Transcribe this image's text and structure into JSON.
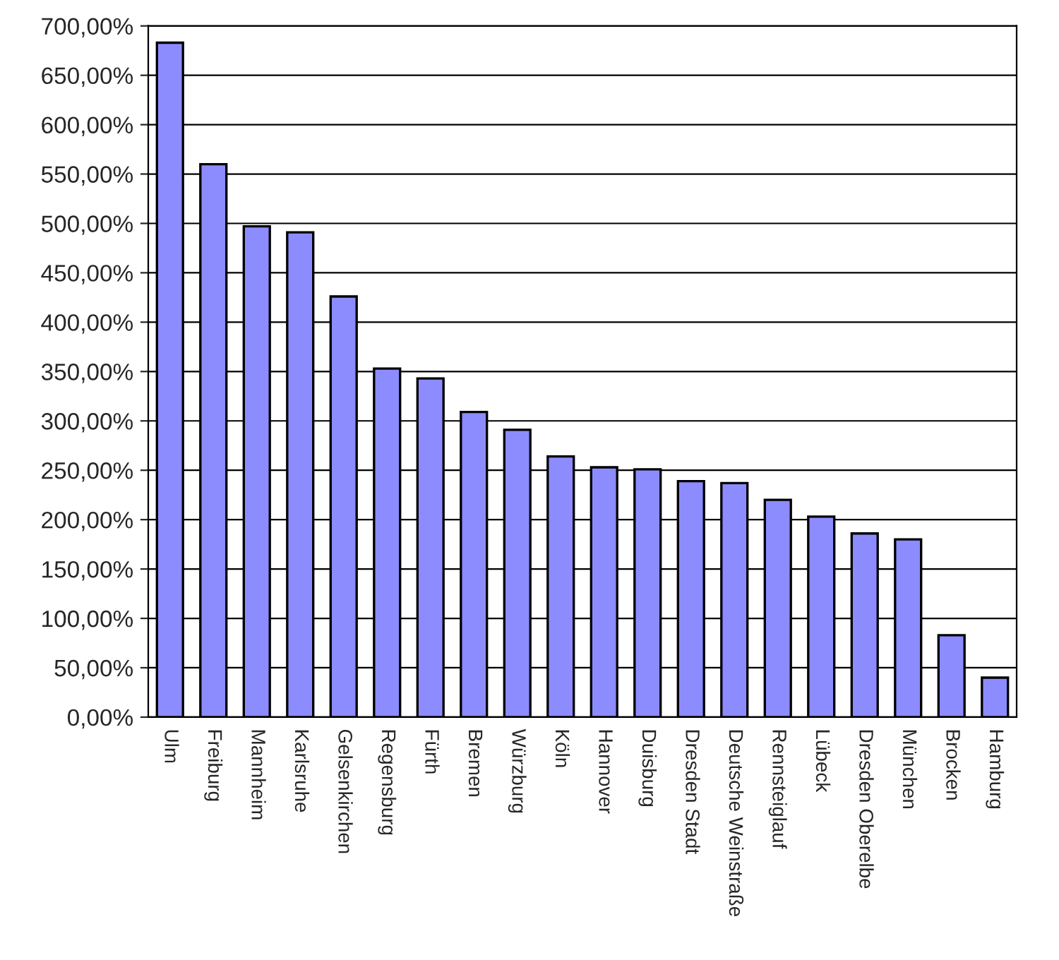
{
  "chart_data": {
    "type": "bar",
    "categories": [
      "Ulm",
      "Freiburg",
      "Mannheim",
      "Karlsruhe",
      "Gelsenkirchen",
      "Regensburg",
      "Fürth",
      "Bremen",
      "Würzburg",
      "Köln",
      "Hannover",
      "Duisburg",
      "Dresden Stadt",
      "Deutsche Weinstraße",
      "Rennsteiglauf",
      "Lübeck",
      "Dresden Oberelbe",
      "München",
      "Brocken",
      "Hamburg"
    ],
    "values": [
      683,
      560,
      497,
      491,
      426,
      353,
      343,
      309,
      291,
      264,
      253,
      251,
      239,
      237,
      220,
      203,
      186,
      180,
      83,
      40
    ],
    "color": "#8c8cff",
    "ylim": [
      0,
      700
    ],
    "yticks": [
      {
        "value": 0,
        "label": "0,00%"
      },
      {
        "value": 50,
        "label": "50,00%"
      },
      {
        "value": 100,
        "label": "100,00%"
      },
      {
        "value": 150,
        "label": "150,00%"
      },
      {
        "value": 200,
        "label": "200,00%"
      },
      {
        "value": 250,
        "label": "250,00%"
      },
      {
        "value": 300,
        "label": "300,00%"
      },
      {
        "value": 350,
        "label": "350,00%"
      },
      {
        "value": 400,
        "label": "400,00%"
      },
      {
        "value": 450,
        "label": "450,00%"
      },
      {
        "value": 500,
        "label": "500,00%"
      },
      {
        "value": 550,
        "label": "550,00%"
      },
      {
        "value": 600,
        "label": "600,00%"
      },
      {
        "value": 650,
        "label": "650,00%"
      },
      {
        "value": 700,
        "label": "700,00%"
      }
    ],
    "grid": "y"
  }
}
